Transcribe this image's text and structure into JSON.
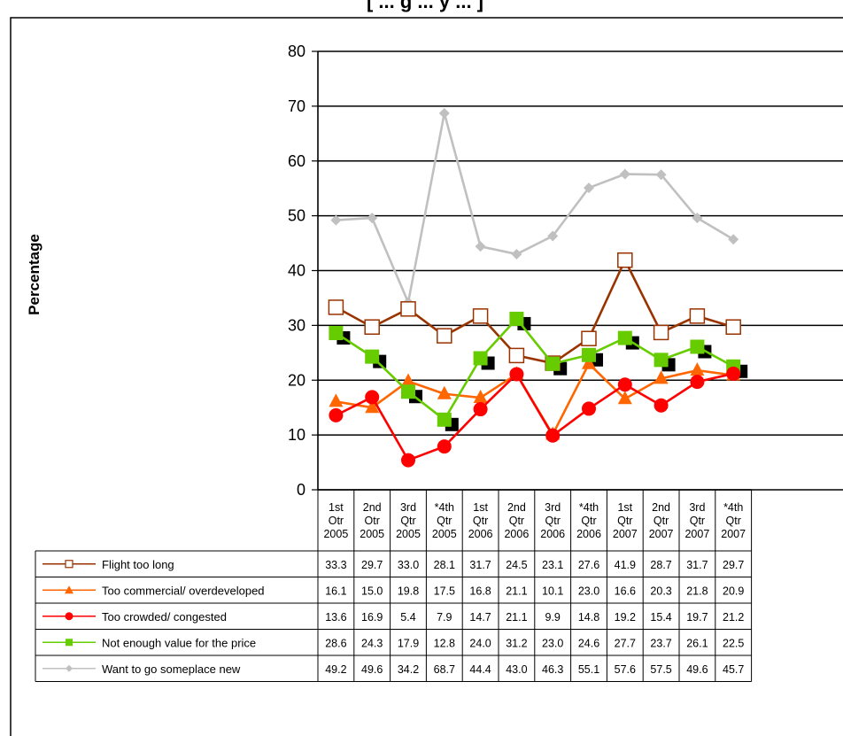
{
  "chart_data": {
    "type": "line",
    "title_partial": "[ ... g ... y ... ]",
    "ylabel": "Percentage",
    "ylim": [
      0,
      80
    ],
    "yticks": [
      0,
      10,
      20,
      30,
      40,
      50,
      60,
      70,
      80
    ],
    "grid": true,
    "legend_placement": "data-table-left",
    "categories": [
      [
        "1st",
        "Otr",
        "2005"
      ],
      [
        "2nd",
        "Otr",
        "2005"
      ],
      [
        "3rd",
        "Qtr",
        "2005"
      ],
      [
        "*4th",
        "Qtr",
        "2005"
      ],
      [
        "1st",
        "Qtr",
        "2006"
      ],
      [
        "2nd",
        "Qtr",
        "2006"
      ],
      [
        "3rd",
        "Qtr",
        "2006"
      ],
      [
        "*4th",
        "Qtr",
        "2006"
      ],
      [
        "1st",
        "Qtr",
        "2007"
      ],
      [
        "2nd",
        "Qtr",
        "2007"
      ],
      [
        "3rd",
        "Qtr",
        "2007"
      ],
      [
        "*4th",
        "Qtr",
        "2007"
      ]
    ],
    "series": [
      {
        "name": "Flight too long",
        "color": "#993300",
        "marker": "open-square",
        "values": [
          "33.3",
          "29.7",
          "33.0",
          "28.1",
          "31.7",
          "24.5",
          "23.1",
          "27.6",
          "41.9",
          "28.7",
          "31.7",
          "29.7"
        ]
      },
      {
        "name": "Too commercial/ overdeveloped",
        "color": "#ff6600",
        "marker": "triangle",
        "values": [
          "16.1",
          "15.0",
          "19.8",
          "17.5",
          "16.8",
          "21.1",
          "10.1",
          "23.0",
          "16.6",
          "20.3",
          "21.8",
          "20.9"
        ]
      },
      {
        "name": "Too crowded/ congested",
        "color": "#ff0000",
        "marker": "circle",
        "values": [
          "13.6",
          "16.9",
          "5.4",
          "7.9",
          "14.7",
          "21.1",
          "9.9",
          "14.8",
          "19.2",
          "15.4",
          "19.7",
          "21.2"
        ]
      },
      {
        "name": "Not enough value for the price",
        "color": "#66cc00",
        "marker": "square",
        "values": [
          "28.6",
          "24.3",
          "17.9",
          "12.8",
          "24.0",
          "31.2",
          "23.0",
          "24.6",
          "27.7",
          "23.7",
          "26.1",
          "22.5"
        ]
      },
      {
        "name": "Want to go someplace new",
        "color": "#c0c0c0",
        "marker": "diamond",
        "values": [
          "49.2",
          "49.6",
          "34.2",
          "68.7",
          "44.4",
          "43.0",
          "46.3",
          "55.1",
          "57.6",
          "57.5",
          "49.6",
          "45.7"
        ]
      }
    ]
  }
}
